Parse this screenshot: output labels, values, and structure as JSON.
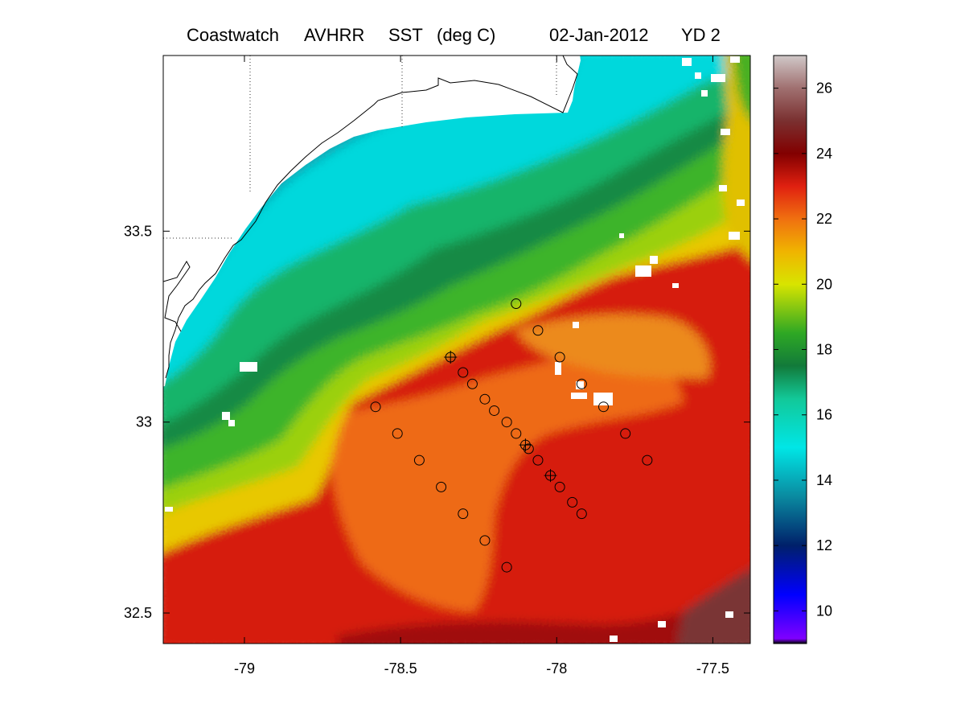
{
  "title": {
    "product": "Coastwatch",
    "sensor": "AVHRR",
    "variable": "SST",
    "units": "(deg C)",
    "date": "02-Jan-2012",
    "yearday": "YD 2"
  },
  "map": {
    "lon_range": [
      -79.26,
      -77.38
    ],
    "lat_range": [
      32.42,
      33.96
    ],
    "x_ticks": [
      {
        "value": -79,
        "label": "-79"
      },
      {
        "value": -78.5,
        "label": "-78.5"
      },
      {
        "value": -78,
        "label": "-78"
      },
      {
        "value": -77.5,
        "label": "-77.5"
      }
    ],
    "y_ticks": [
      {
        "value": 33.5,
        "label": "33.5"
      },
      {
        "value": 33,
        "label": "33"
      },
      {
        "value": 32.5,
        "label": "32.5"
      }
    ],
    "grid": "dotted-partial",
    "stations": [
      [
        -78.13,
        33.31
      ],
      [
        -78.06,
        33.24
      ],
      [
        -77.99,
        33.17
      ],
      [
        -77.92,
        33.1
      ],
      [
        -77.85,
        33.04
      ],
      [
        -77.78,
        32.97
      ],
      [
        -77.71,
        32.9
      ],
      [
        -78.3,
        33.13
      ],
      [
        -78.27,
        33.1
      ],
      [
        -78.23,
        33.06
      ],
      [
        -78.2,
        33.03
      ],
      [
        -78.16,
        33.0
      ],
      [
        -78.13,
        32.97
      ],
      [
        -78.09,
        32.93
      ],
      [
        -78.06,
        32.9
      ],
      [
        -77.99,
        32.83
      ],
      [
        -77.95,
        32.79
      ],
      [
        -77.92,
        32.76
      ],
      [
        -78.58,
        33.04
      ],
      [
        -78.51,
        32.97
      ],
      [
        -78.44,
        32.9
      ],
      [
        -78.37,
        32.83
      ],
      [
        -78.3,
        32.76
      ],
      [
        -78.23,
        32.69
      ],
      [
        -78.16,
        32.62
      ]
    ],
    "crossed_stations": [
      [
        -78.34,
        33.17
      ],
      [
        -78.1,
        32.94
      ],
      [
        -78.02,
        32.86
      ]
    ]
  },
  "colorbar": {
    "range": [
      9,
      27
    ],
    "ticks": [
      {
        "value": 10,
        "label": "10"
      },
      {
        "value": 12,
        "label": "12"
      },
      {
        "value": 14,
        "label": "14"
      },
      {
        "value": 16,
        "label": "16"
      },
      {
        "value": 18,
        "label": "18"
      },
      {
        "value": 20,
        "label": "20"
      },
      {
        "value": 22,
        "label": "22"
      },
      {
        "value": 24,
        "label": "24"
      },
      {
        "value": 26,
        "label": "26"
      }
    ],
    "stops": [
      {
        "v": 9,
        "c": "#000000"
      },
      {
        "v": 9.15,
        "c": "#8000ff"
      },
      {
        "v": 10.5,
        "c": "#0000ff"
      },
      {
        "v": 12,
        "c": "#00206a"
      },
      {
        "v": 13.5,
        "c": "#0a8aa0"
      },
      {
        "v": 15,
        "c": "#00e6e6"
      },
      {
        "v": 16.5,
        "c": "#12c898"
      },
      {
        "v": 17.5,
        "c": "#127a3a"
      },
      {
        "v": 18.5,
        "c": "#2ea824"
      },
      {
        "v": 20,
        "c": "#d8e400"
      },
      {
        "v": 21,
        "c": "#f0b400"
      },
      {
        "v": 22,
        "c": "#f07010"
      },
      {
        "v": 23,
        "c": "#e02010"
      },
      {
        "v": 24,
        "c": "#820000"
      },
      {
        "v": 25,
        "c": "#7a3030"
      },
      {
        "v": 26,
        "c": "#a07070"
      },
      {
        "v": 27,
        "c": "#d0c8c8"
      }
    ]
  }
}
